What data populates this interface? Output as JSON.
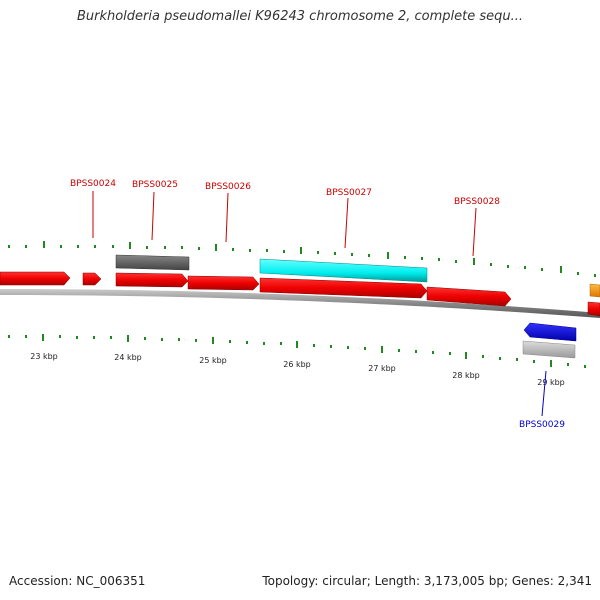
{
  "title": "Burkholderia pseudomallei K96243 chromosome 2, complete sequ...",
  "footer": {
    "accession_label": "Accession:",
    "accession": "NC_006351",
    "topology_label": "Topology:",
    "topology": "circular",
    "length_label": "Length:",
    "length": "3,173,005 bp",
    "genes_label": "Genes:",
    "genes": "2,341"
  },
  "kbp_labels": [
    "23 kbp",
    "24 kbp",
    "25 kbp",
    "26 kbp",
    "27 kbp",
    "28 kbp",
    "29 kbp"
  ],
  "gene_labels": [
    {
      "name": "BPSS0024",
      "color": "#cc0000"
    },
    {
      "name": "BPSS0025",
      "color": "#cc0000"
    },
    {
      "name": "BPSS0026",
      "color": "#cc0000"
    },
    {
      "name": "BPSS0027",
      "color": "#cc0000"
    },
    {
      "name": "BPSS0028",
      "color": "#cc0000"
    },
    {
      "name": "BPSS0029",
      "color": "#0000cc"
    }
  ],
  "feature_colors": {
    "cds": "#ff0000",
    "selected": "#00ffff",
    "gray": "#666666",
    "light_gray": "#c0c0c0",
    "reverse": "#0000ff",
    "orange": "#ff9900",
    "ticks": "#228822",
    "backbone": "#888888"
  }
}
